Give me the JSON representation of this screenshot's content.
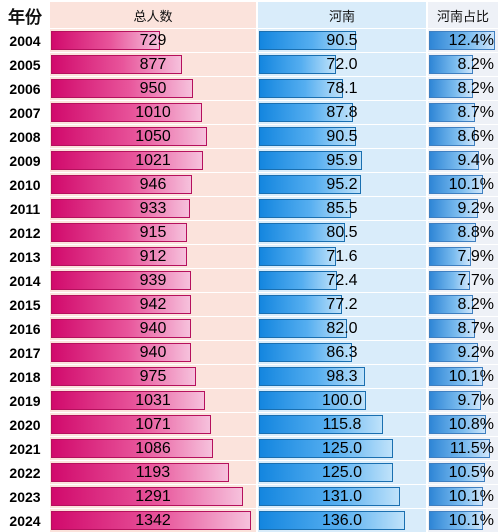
{
  "headers": {
    "year": "年份",
    "total": "总人数",
    "henan": "河南",
    "share": "河南占比"
  },
  "colors": {
    "total_bar": "#d10a6c",
    "henan_bar": "#1486df",
    "share_bar": "#2f86d6"
  },
  "chart_data": {
    "type": "table",
    "columns": [
      "年份",
      "总人数",
      "河南",
      "河南占比"
    ],
    "rows": [
      {
        "year": "2004",
        "total": "729",
        "henan": "90.5",
        "share": "12.4%"
      },
      {
        "year": "2005",
        "total": "877",
        "henan": "72.0",
        "share": "8.2%"
      },
      {
        "year": "2006",
        "total": "950",
        "henan": "78.1",
        "share": "8.2%"
      },
      {
        "year": "2007",
        "total": "1010",
        "henan": "87.8",
        "share": "8.7%"
      },
      {
        "year": "2008",
        "total": "1050",
        "henan": "90.5",
        "share": "8.6%"
      },
      {
        "year": "2009",
        "total": "1021",
        "henan": "95.9",
        "share": "9.4%"
      },
      {
        "year": "2010",
        "total": "946",
        "henan": "95.2",
        "share": "10.1%"
      },
      {
        "year": "2011",
        "total": "933",
        "henan": "85.5",
        "share": "9.2%"
      },
      {
        "year": "2012",
        "total": "915",
        "henan": "80.5",
        "share": "8.8%"
      },
      {
        "year": "2013",
        "total": "912",
        "henan": "71.6",
        "share": "7.9%"
      },
      {
        "year": "2014",
        "total": "939",
        "henan": "72.4",
        "share": "7.7%"
      },
      {
        "year": "2015",
        "total": "942",
        "henan": "77.2",
        "share": "8.2%"
      },
      {
        "year": "2016",
        "total": "940",
        "henan": "82.0",
        "share": "8.7%"
      },
      {
        "year": "2017",
        "total": "940",
        "henan": "86.3",
        "share": "9.2%"
      },
      {
        "year": "2018",
        "total": "975",
        "henan": "98.3",
        "share": "10.1%"
      },
      {
        "year": "2019",
        "total": "1031",
        "henan": "100.0",
        "share": "9.7%"
      },
      {
        "year": "2020",
        "total": "1071",
        "henan": "115.8",
        "share": "10.8%"
      },
      {
        "year": "2021",
        "total": "1086",
        "henan": "125.0",
        "share": "11.5%"
      },
      {
        "year": "2022",
        "total": "1193",
        "henan": "125.0",
        "share": "10.5%"
      },
      {
        "year": "2023",
        "total": "1291",
        "henan": "131.0",
        "share": "10.1%"
      },
      {
        "year": "2024",
        "total": "1342",
        "henan": "136.0",
        "share": "10.1%"
      }
    ]
  }
}
